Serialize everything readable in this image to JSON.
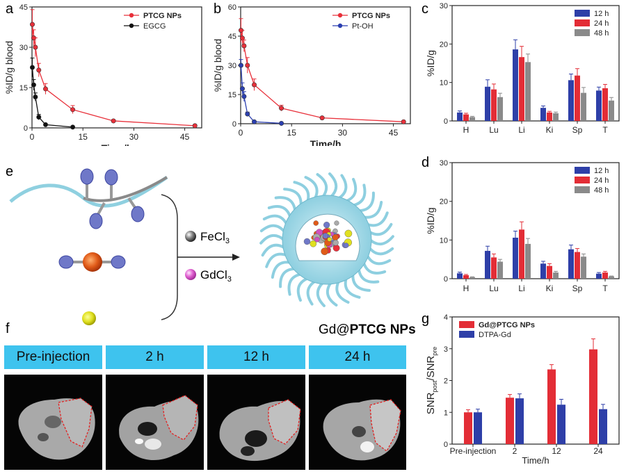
{
  "panel_labels": {
    "a": "a",
    "b": "b",
    "c": "c",
    "d": "d",
    "e": "e",
    "f": "f",
    "g": "g"
  },
  "chart_data": [
    {
      "id": "a",
      "type": "line",
      "xlabel": "Time/h",
      "ylabel": "%ID/g blood",
      "xlim": [
        0,
        50
      ],
      "ylim": [
        0,
        45
      ],
      "xticks": [
        0,
        15,
        30,
        45
      ],
      "yticks": [
        0,
        15,
        30,
        45
      ],
      "series": [
        {
          "name": "PTCG NPs",
          "color": "#e8303a",
          "x": [
            0.1,
            0.5,
            1,
            2,
            4,
            12,
            24,
            48
          ],
          "y": [
            38.5,
            33.5,
            30,
            21.5,
            14.5,
            6.8,
            2.6,
            0.8
          ],
          "err": [
            5.5,
            3,
            3.5,
            2.5,
            2,
            1.5,
            0.4,
            0.2
          ]
        },
        {
          "name": "EGCG",
          "color": "#111111",
          "x": [
            0.1,
            0.5,
            1,
            2,
            4,
            12
          ],
          "y": [
            22.5,
            16,
            11.5,
            4,
            1.2,
            0.3
          ],
          "err": [
            3.5,
            2,
            1.5,
            1,
            0.3,
            0.1
          ]
        }
      ]
    },
    {
      "id": "b",
      "type": "line",
      "xlabel": "Time/h",
      "ylabel": "%ID/g blood",
      "xlim": [
        0,
        50
      ],
      "ylim": [
        0,
        60
      ],
      "xticks": [
        0,
        15,
        30,
        45
      ],
      "yticks": [
        0,
        15,
        30,
        45,
        60
      ],
      "series": [
        {
          "name": "PTCG NPs",
          "color": "#e8303a",
          "x": [
            0.1,
            0.5,
            1,
            2,
            4,
            12,
            24,
            48
          ],
          "y": [
            48,
            44,
            40,
            30,
            20,
            8,
            3,
            1
          ],
          "err": [
            6,
            4,
            3,
            4,
            3,
            1.5,
            0.5,
            0.3
          ]
        },
        {
          "name": "Pt-OH",
          "color": "#2b3fb0",
          "x": [
            0.1,
            0.5,
            1,
            2,
            4,
            12
          ],
          "y": [
            30,
            18,
            14,
            5,
            1,
            0.2
          ],
          "err": [
            3,
            3,
            2.5,
            1,
            0.3,
            0.1
          ]
        }
      ]
    },
    {
      "id": "c",
      "type": "bar",
      "xlabel": "",
      "ylabel": "%ID/g",
      "ylim": [
        0,
        30
      ],
      "yticks": [
        0,
        10,
        20,
        30
      ],
      "categories": [
        "H",
        "Lu",
        "Li",
        "Ki",
        "Sp",
        "T"
      ],
      "series": [
        {
          "name": "12 h",
          "color": "#2e3fa8",
          "values": [
            2.2,
            8.9,
            18.6,
            3.4,
            10.6,
            7.9
          ],
          "err": [
            0.4,
            1.8,
            2.5,
            0.5,
            1.6,
            0.9
          ]
        },
        {
          "name": "24 h",
          "color": "#e32d36",
          "values": [
            1.7,
            8.2,
            16.6,
            2.2,
            11.8,
            8.5
          ],
          "err": [
            0.3,
            1.4,
            2.8,
            0.3,
            1.8,
            1.0
          ]
        },
        {
          "name": "48 h",
          "color": "#8a8a8a",
          "values": [
            1.0,
            6.2,
            15.3,
            2.0,
            7.3,
            5.3
          ],
          "err": [
            0.2,
            1.0,
            2.1,
            0.3,
            1.4,
            0.8
          ]
        }
      ]
    },
    {
      "id": "d",
      "type": "bar",
      "xlabel": "",
      "ylabel": "%ID/g",
      "ylim": [
        0,
        30
      ],
      "yticks": [
        0,
        10,
        20,
        30
      ],
      "categories": [
        "H",
        "Lu",
        "Li",
        "Ki",
        "Sp",
        "T"
      ],
      "series": [
        {
          "name": "12 h",
          "color": "#2e3fa8",
          "values": [
            1.4,
            7.2,
            10.6,
            3.9,
            7.6,
            1.3
          ],
          "err": [
            0.3,
            1.2,
            1.7,
            0.6,
            1.1,
            0.3
          ]
        },
        {
          "name": "24 h",
          "color": "#e32d36",
          "values": [
            0.9,
            5.5,
            12.7,
            3.3,
            6.9,
            1.6
          ],
          "err": [
            0.2,
            0.9,
            2.0,
            0.6,
            0.9,
            0.3
          ]
        },
        {
          "name": "48 h",
          "color": "#8a8a8a",
          "values": [
            0.4,
            4.4,
            9.0,
            1.6,
            5.7,
            0.6
          ],
          "err": [
            0.1,
            0.6,
            1.4,
            0.3,
            0.7,
            0.1
          ]
        }
      ]
    },
    {
      "id": "g",
      "type": "bar",
      "xlabel": "Time/h",
      "ylabel": "SNR_post/SNR_pre",
      "ylim": [
        0,
        4
      ],
      "yticks": [
        0,
        1,
        2,
        3,
        4
      ],
      "categories": [
        "Pre-injection",
        "2",
        "12",
        "24"
      ],
      "series": [
        {
          "name": "Gd@PTCG NPs",
          "color": "#e32d36",
          "values": [
            1.0,
            1.46,
            2.35,
            2.98
          ],
          "err": [
            0.08,
            0.1,
            0.15,
            0.33
          ]
        },
        {
          "name": "DTPA-Gd",
          "color": "#2e3fa8",
          "values": [
            1.0,
            1.44,
            1.24,
            1.1
          ],
          "err": [
            0.1,
            0.14,
            0.17,
            0.15
          ]
        }
      ]
    }
  ],
  "scheme": {
    "reagent1": "FeCl",
    "reagent1_sub": "3",
    "reagent2": "GdCl",
    "reagent2_sub": "3",
    "product_prefix": "Gd@",
    "product_name": "PTCG NPs"
  },
  "mri": {
    "headers": [
      "Pre-injection",
      "2 h",
      "12 h",
      "24 h"
    ]
  }
}
